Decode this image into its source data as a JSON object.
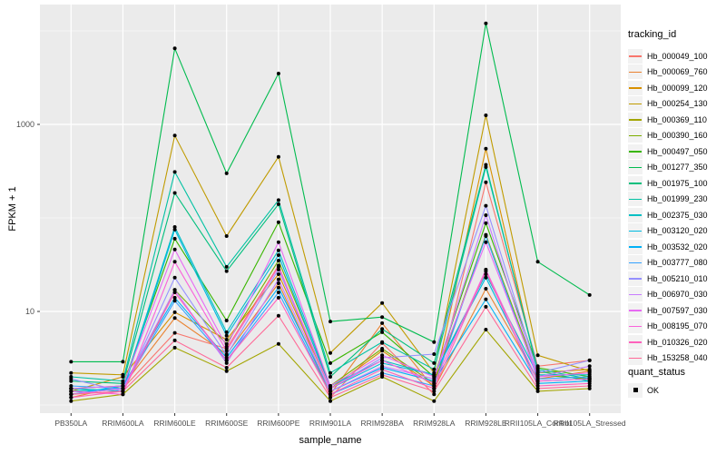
{
  "figure": {
    "panel_bg": "#EBEBEB",
    "grid_color": "#FFFFFF",
    "tick_color": "#333333",
    "tick_text_color": "#4D4D4D",
    "point_color": "#000000",
    "legend_key_bg": "#F2F2F2"
  },
  "chart_data": {
    "type": "line",
    "title": "",
    "xlabel": "sample_name",
    "ylabel": "FPKM + 1",
    "y_scale": "log10",
    "grid": true,
    "legend_position": "right",
    "legend_title": "tracking_id",
    "y_major_ticks": [
      10,
      1000
    ],
    "y_tick_labels": [
      "10",
      "1000"
    ],
    "y_minor_ticks": [
      1,
      100,
      10000
    ],
    "ylim": [
      1,
      20000
    ],
    "categories": [
      "PB350LA",
      "RRIM600LA",
      "RRIM600LE",
      "RRIM600SE",
      "RRIM600PE",
      "RRIM901LA",
      "RRIM928BA",
      "RRIM928LA",
      "RRIM928LE",
      "RRII105LA_Control",
      "RRII105LA_Stressed"
    ],
    "series": [
      {
        "name": "Hb_000049_100",
        "color": "#F8766D",
        "values": [
          1.3,
          1.5,
          5.9,
          4.0,
          31,
          1.2,
          4.6,
          1.3,
          240,
          2.6,
          3.0
        ]
      },
      {
        "name": "Hb_000069_760",
        "color": "#EA8331",
        "values": [
          1.2,
          1.6,
          8.5,
          3.5,
          20,
          1.3,
          7.5,
          1.5,
          17.5,
          1.9,
          2.3
        ]
      },
      {
        "name": "Hb_000099_120",
        "color": "#D89000",
        "values": [
          1.4,
          2.0,
          9.8,
          5.0,
          25,
          1.5,
          3.8,
          1.6,
          550,
          2.2,
          2.4
        ]
      },
      {
        "name": "Hb_000254_130",
        "color": "#C09B00",
        "values": [
          2.2,
          2.1,
          760,
          64,
          450,
          3.6,
          12.3,
          2.2,
          1250,
          3.4,
          2.3
        ]
      },
      {
        "name": "Hb_000369_110",
        "color": "#A3A500",
        "values": [
          1.1,
          1.3,
          4.1,
          2.3,
          4.5,
          1.1,
          2.0,
          1.1,
          6.4,
          1.4,
          1.5
        ]
      },
      {
        "name": "Hb_000390_160",
        "color": "#7CAE00",
        "values": [
          1.5,
          1.4,
          17,
          4.5,
          35,
          1.6,
          4.0,
          1.7,
          66,
          2.1,
          1.9
        ]
      },
      {
        "name": "Hb_000497_050",
        "color": "#39B600",
        "values": [
          1.5,
          1.6,
          60,
          8.0,
          90,
          2.8,
          6.0,
          2.0,
          88,
          2.5,
          2.0
        ]
      },
      {
        "name": "Hb_001277_350",
        "color": "#00BB4E",
        "values": [
          2.9,
          2.9,
          6500,
          300,
          3500,
          7.8,
          8.7,
          4.7,
          12000,
          34,
          15
        ]
      },
      {
        "name": "Hb_001975_100",
        "color": "#00BF7D",
        "values": [
          1.8,
          1.7,
          185,
          27,
          140,
          2.0,
          6.5,
          2.8,
          370,
          2.3,
          1.8
        ]
      },
      {
        "name": "Hb_001999_230",
        "color": "#00C1A3",
        "values": [
          2.0,
          1.8,
          310,
          30,
          155,
          2.2,
          4.7,
          2.4,
          350,
          2.4,
          1.9
        ]
      },
      {
        "name": "Hb_002375_030",
        "color": "#00BFC4",
        "values": [
          1.4,
          1.5,
          80,
          6.0,
          45,
          1.6,
          3.0,
          2.1,
          25,
          2.1,
          2.1
        ]
      },
      {
        "name": "Hb_003120_020",
        "color": "#00BAE0",
        "values": [
          1.5,
          1.4,
          75,
          5.5,
          40,
          1.5,
          2.8,
          2.1,
          23,
          1.8,
          1.9
        ]
      },
      {
        "name": "Hb_003532_020",
        "color": "#00B0F6",
        "values": [
          1.3,
          1.6,
          14,
          3.2,
          18,
          1.4,
          2.5,
          1.8,
          13.5,
          1.7,
          1.8
        ]
      },
      {
        "name": "Hb_003777_080",
        "color": "#35A2FF",
        "values": [
          1.6,
          1.5,
          13,
          3.0,
          16,
          1.3,
          2.2,
          1.6,
          64,
          1.9,
          2.0
        ]
      },
      {
        "name": "Hb_005210_010",
        "color": "#9590FF",
        "values": [
          1.9,
          1.4,
          23,
          3.4,
          28,
          1.5,
          3.2,
          3.5,
          135,
          2.2,
          3.0
        ]
      },
      {
        "name": "Hb_006970_030",
        "color": "#C77CFF",
        "values": [
          1.3,
          1.5,
          17,
          2.8,
          22,
          1.4,
          2.6,
          1.9,
          107,
          2.0,
          2.6
        ]
      },
      {
        "name": "Hb_007597_030",
        "color": "#E76BF3",
        "values": [
          1.5,
          1.6,
          46,
          4.2,
          55,
          1.6,
          3.4,
          2.0,
          55,
          2.0,
          2.2
        ]
      },
      {
        "name": "Hb_008195_070",
        "color": "#FA62DB",
        "values": [
          1.4,
          1.3,
          34,
          3.8,
          30,
          1.5,
          3.0,
          1.7,
          28,
          1.8,
          1.9
        ]
      },
      {
        "name": "Hb_010326_020",
        "color": "#FF62BC",
        "values": [
          1.2,
          1.4,
          16,
          3.0,
          14,
          1.3,
          2.4,
          1.5,
          27,
          1.6,
          1.7
        ]
      },
      {
        "name": "Hb_153258_040",
        "color": "#FF6A98",
        "values": [
          1.3,
          1.4,
          4.9,
          2.5,
          9,
          1.2,
          2.1,
          1.4,
          11.2,
          1.5,
          1.6
        ]
      }
    ],
    "quant_status": {
      "title": "quant_status",
      "items": [
        {
          "label": "OK",
          "shape": "square",
          "color": "#000000"
        }
      ]
    }
  }
}
